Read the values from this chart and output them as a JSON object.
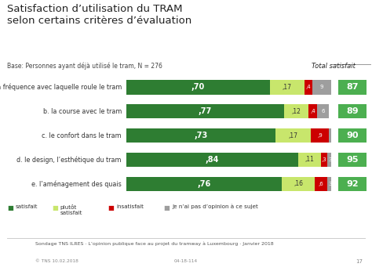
{
  "title": "Satisfaction d’utilisation du TRAM\nselon certains critères d’évaluation",
  "subtitle": "Base: Personnes ayant déjà utilisé le tram, N = 276",
  "total_satisfait_label": "Total satisfait",
  "categories": [
    "a. la fréquence avec laquelle roule le tram",
    "b. la course avec le tram",
    "c. le confort dans le tram",
    "d. le design, l’esthétique du tram",
    "e. l’aménagement des quais"
  ],
  "satisfait": [
    0.7,
    0.77,
    0.73,
    0.84,
    0.76
  ],
  "plutot_satisfait": [
    0.17,
    0.12,
    0.17,
    0.11,
    0.16
  ],
  "insatisfait": [
    0.04,
    0.04,
    0.09,
    0.03,
    0.06
  ],
  "no_opinion": [
    0.09,
    0.06,
    0.01,
    0.03,
    0.03
  ],
  "total_scores": [
    87,
    89,
    90,
    95,
    92
  ],
  "satisfait_labels": [
    ",70",
    ",77",
    ",73",
    ",84",
    ",76"
  ],
  "plutot_labels": [
    ",17",
    ",12",
    ",17",
    ",11",
    ",16"
  ],
  "insatisfait_labels": [
    ",4",
    ",4",
    ",9",
    ",3",
    ",6"
  ],
  "no_opinion_labels": [
    "9",
    "6",
    "1",
    "3",
    "3"
  ],
  "color_satisfait": "#2e7d32",
  "color_plutot": "#c8e66c",
  "color_insatisfait": "#cc0000",
  "color_no_opinion": "#9e9e9e",
  "color_total_box": "#4caf50",
  "color_title": "#222222",
  "color_subtitle": "#444444",
  "footer_text": "Sondage TNS ILRES · L’opinion publique face au projet du tramway à Luxembourg · Janvier 2018",
  "footer_left": "© TNS 10.02.2018",
  "footer_right": "04-18-114",
  "page_number": "17",
  "background_color": "#ffffff",
  "tns_pink": "#e5007d"
}
